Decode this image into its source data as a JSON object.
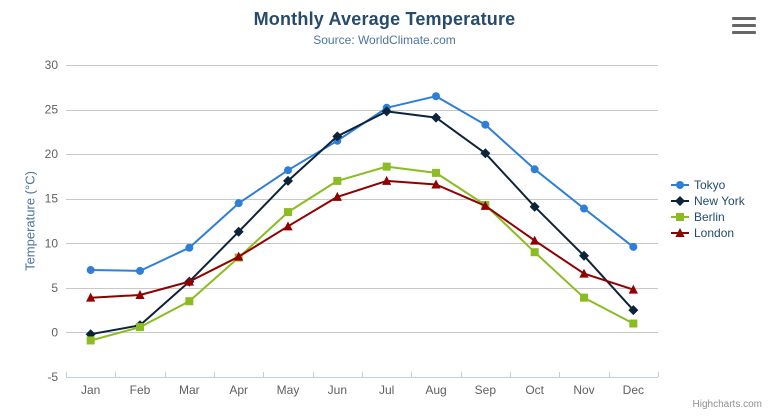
{
  "header": {
    "title": "Monthly Average Temperature",
    "subtitle": "Source: WorldClimate.com"
  },
  "credits": {
    "label": "Highcharts.com"
  },
  "export_menu": {
    "icon": "hamburger-icon"
  },
  "chart_data": {
    "type": "line",
    "title": "Monthly Average Temperature",
    "subtitle": "Source: WorldClimate.com",
    "categories": [
      "Jan",
      "Feb",
      "Mar",
      "Apr",
      "May",
      "Jun",
      "Jul",
      "Aug",
      "Sep",
      "Oct",
      "Nov",
      "Dec"
    ],
    "series": [
      {
        "name": "Tokyo",
        "color": "#2f7ed8",
        "marker": "circle",
        "values": [
          7.0,
          6.9,
          9.5,
          14.5,
          18.2,
          21.5,
          25.2,
          26.5,
          23.3,
          18.3,
          13.9,
          9.6
        ]
      },
      {
        "name": "New York",
        "color": "#0d233a",
        "marker": "diamond",
        "values": [
          -0.2,
          0.8,
          5.7,
          11.3,
          17.0,
          22.0,
          24.8,
          24.1,
          20.1,
          14.1,
          8.6,
          2.5
        ]
      },
      {
        "name": "Berlin",
        "color": "#8bbc21",
        "marker": "square",
        "values": [
          -0.9,
          0.6,
          3.5,
          8.4,
          13.5,
          17.0,
          18.6,
          17.9,
          14.3,
          9.0,
          3.9,
          1.0
        ]
      },
      {
        "name": "London",
        "color": "#910000",
        "marker": "triangle",
        "values": [
          3.9,
          4.2,
          5.7,
          8.5,
          11.9,
          15.2,
          17.0,
          16.6,
          14.2,
          10.3,
          6.6,
          4.8
        ]
      }
    ],
    "xlabel": "",
    "ylabel": "Temperature (°C)",
    "ylim": [
      -5,
      30
    ],
    "yticks": [
      -5,
      0,
      5,
      10,
      15,
      20,
      25,
      30
    ],
    "grid": true,
    "legend_position": "right",
    "colors": {
      "title_text": "#274b6d",
      "subtitle_text": "#4d759e",
      "axis_label_text": "#606060",
      "axis_title_text": "#4d759e",
      "legend_text": "#274b6d",
      "gridline": "#c8c8c8",
      "axis_line": "#c0d0e0",
      "credits_text": "#909090"
    }
  }
}
